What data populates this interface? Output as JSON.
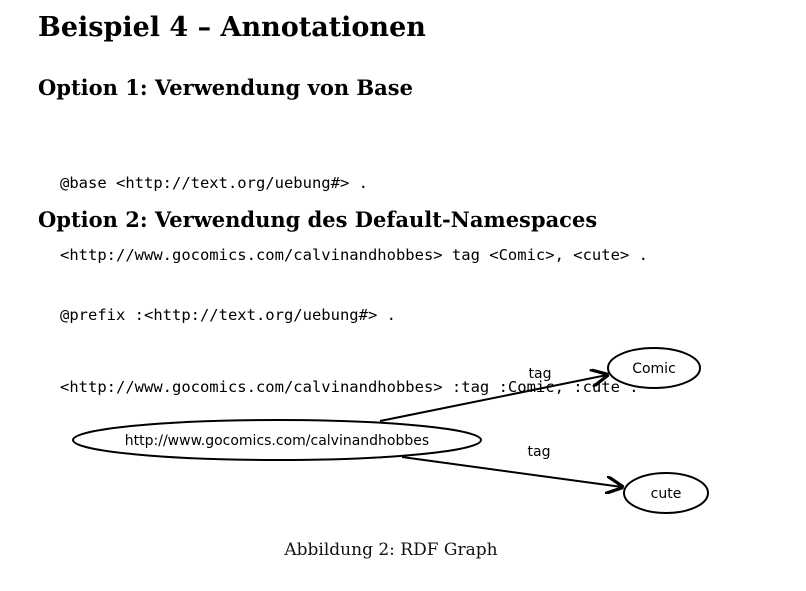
{
  "document": {
    "title": "Beispiel 4 – Annotationen"
  },
  "option1": {
    "heading": "Option 1: Verwendung von Base",
    "code_lines": [
      "@base <http://text.org/uebung#> .",
      "<http://www.gocomics.com/calvinandhobbes> tag <Comic>, <cute> ."
    ]
  },
  "option2": {
    "heading": "Option 2: Verwendung des Default-Namespaces",
    "code_lines": [
      "@prefix :<http://text.org/uebung#> .",
      "<http://www.gocomics.com/calvinandhobbes> :tag :Comic, :cute ."
    ]
  },
  "graph": {
    "subject_label": "http://www.gocomics.com/calvinandhobbes",
    "object_comic_label": "Comic",
    "object_cute_label": "cute",
    "edge_comic_label": "tag",
    "edge_cute_label": "tag"
  },
  "figure": {
    "caption": "Abbildung 2: RDF Graph"
  }
}
